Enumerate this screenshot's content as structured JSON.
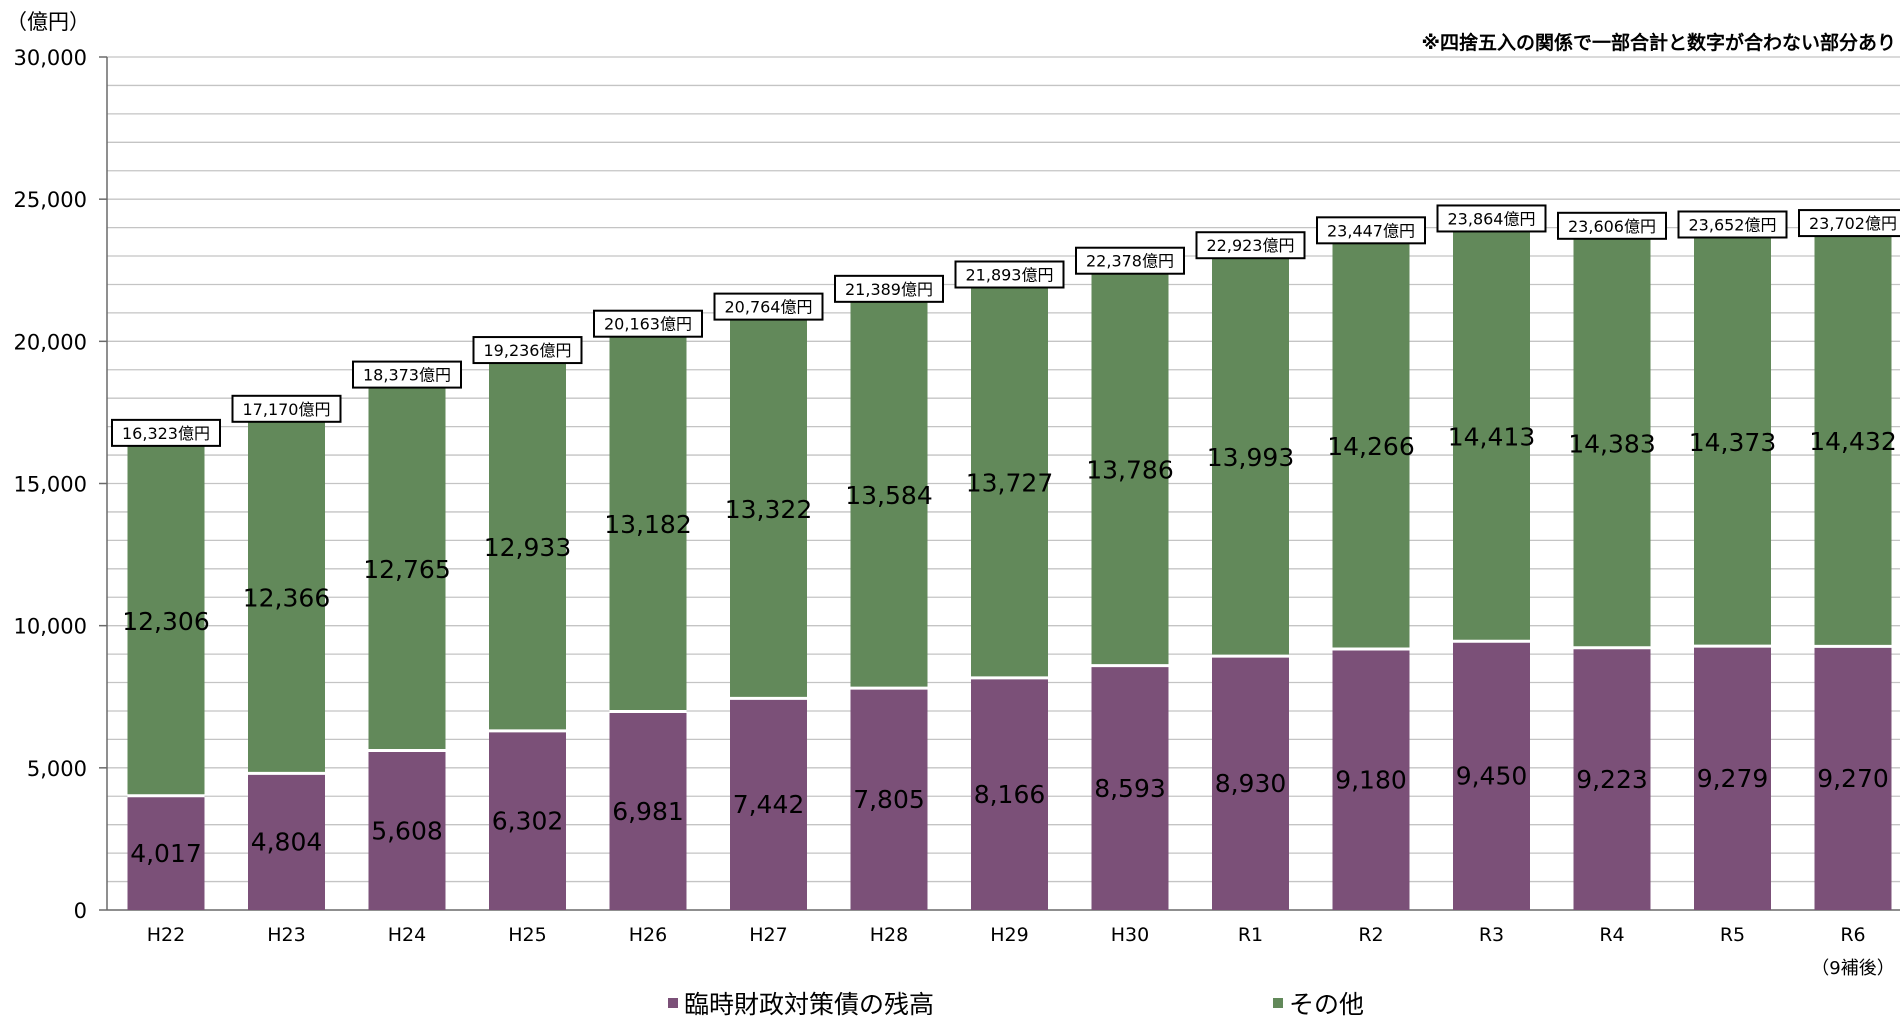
{
  "chart_data": {
    "type": "bar",
    "stacked": true,
    "unit_label": "（億円）",
    "note": "※四捨五入の関係で一部合計と数字が合わない部分あり",
    "categories": [
      "H22",
      "H23",
      "H24",
      "H25",
      "H26",
      "H27",
      "H28",
      "H29",
      "H30",
      "R1",
      "R2",
      "R3",
      "R4",
      "R5",
      "R6"
    ],
    "category_sublabels": [
      "",
      "",
      "",
      "",
      "",
      "",
      "",
      "",
      "",
      "",
      "",
      "",
      "",
      "",
      "（9補後）"
    ],
    "series": [
      {
        "name": "臨時財政対策債の残高",
        "color": "#7b5078",
        "values": [
          4017,
          4804,
          5608,
          6302,
          6981,
          7442,
          7805,
          8166,
          8593,
          8930,
          9180,
          9450,
          9223,
          9279,
          9270
        ]
      },
      {
        "name": "その他",
        "color": "#62895a",
        "values": [
          12306,
          12366,
          12765,
          12933,
          13182,
          13322,
          13584,
          13727,
          13786,
          13993,
          14266,
          14413,
          14383,
          14373,
          14432
        ]
      }
    ],
    "totals": [
      "16,323億円",
      "17,170億円",
      "18,373億円",
      "19,236億円",
      "20,163億円",
      "20,764億円",
      "21,389億円",
      "21,893億円",
      "22,378億円",
      "22,923億円",
      "23,447億円",
      "23,864億円",
      "23,606億円",
      "23,652億円",
      "23,702億円"
    ],
    "total_values": [
      16323,
      17170,
      18373,
      19236,
      20163,
      20764,
      21389,
      21893,
      22378,
      22923,
      23447,
      23864,
      23606,
      23652,
      23702
    ],
    "ylim": [
      0,
      30000
    ],
    "yticks": [
      0,
      5000,
      10000,
      15000,
      20000,
      25000,
      30000
    ],
    "ytick_labels": [
      "0",
      "5,000",
      "10,000",
      "15,000",
      "20,000",
      "25,000",
      "30,000"
    ],
    "minor_grid_step": 1000,
    "grid": true,
    "legend_position": "bottom"
  }
}
